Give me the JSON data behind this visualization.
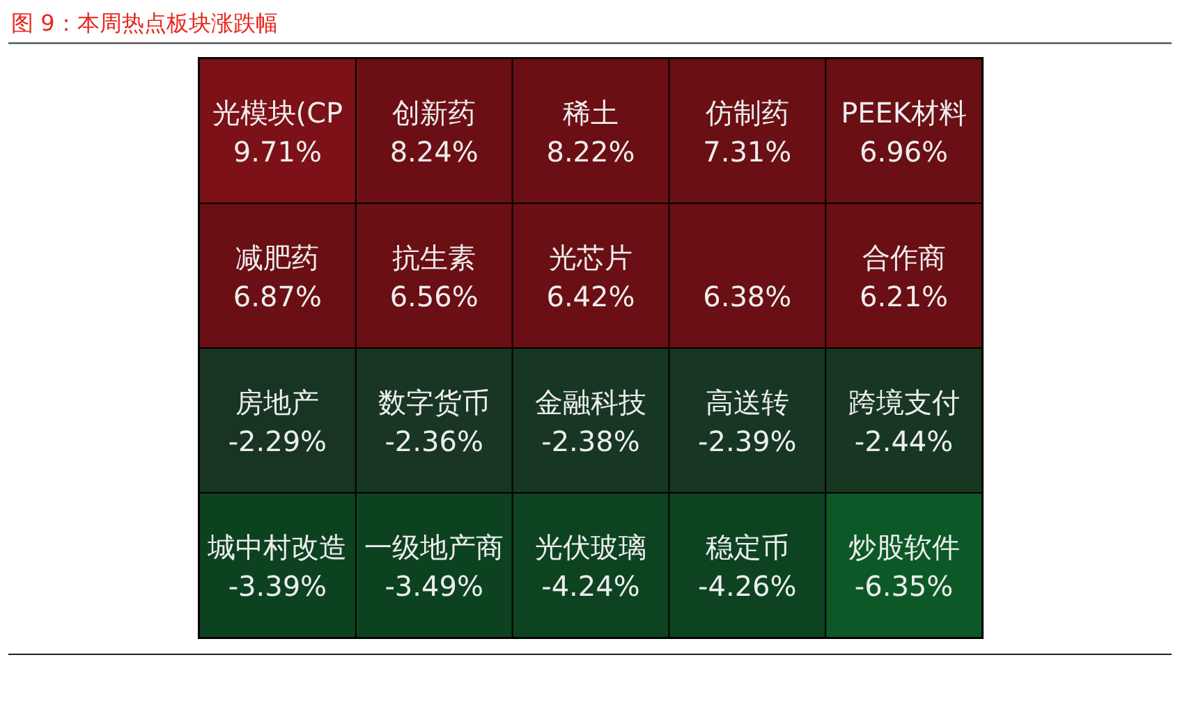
{
  "chart_data": {
    "type": "other",
    "title": "图 9：本周热点板块涨跌幅",
    "categories": [
      "光模块(CP",
      "创新药",
      "稀土",
      "仿制药",
      "PEEK材料",
      "减肥药",
      "抗生素",
      "光芯片",
      null,
      "合作商",
      "房地产",
      "数字货币",
      "金融科技",
      "高送转",
      "跨境支付",
      "城中村改造",
      "一级地产商",
      "光伏玻璃",
      "稳定币",
      "炒股软件"
    ],
    "values": [
      9.71,
      8.24,
      8.22,
      7.31,
      6.96,
      6.87,
      6.56,
      6.42,
      6.38,
      6.21,
      -2.29,
      -2.36,
      -2.38,
      -2.39,
      -2.44,
      -3.39,
      -3.49,
      -4.24,
      -4.26,
      -6.35
    ],
    "value_labels": [
      "9.71%",
      "8.24%",
      "8.22%",
      "7.31%",
      "6.96%",
      "6.87%",
      "6.56%",
      "6.42%",
      "6.38%",
      "6.21%",
      "-2.29%",
      "-2.36%",
      "-2.38%",
      "-2.39%",
      "-2.44%",
      "-3.39%",
      "-3.49%",
      "-4.24%",
      "-4.26%",
      "-6.35%"
    ]
  }
}
